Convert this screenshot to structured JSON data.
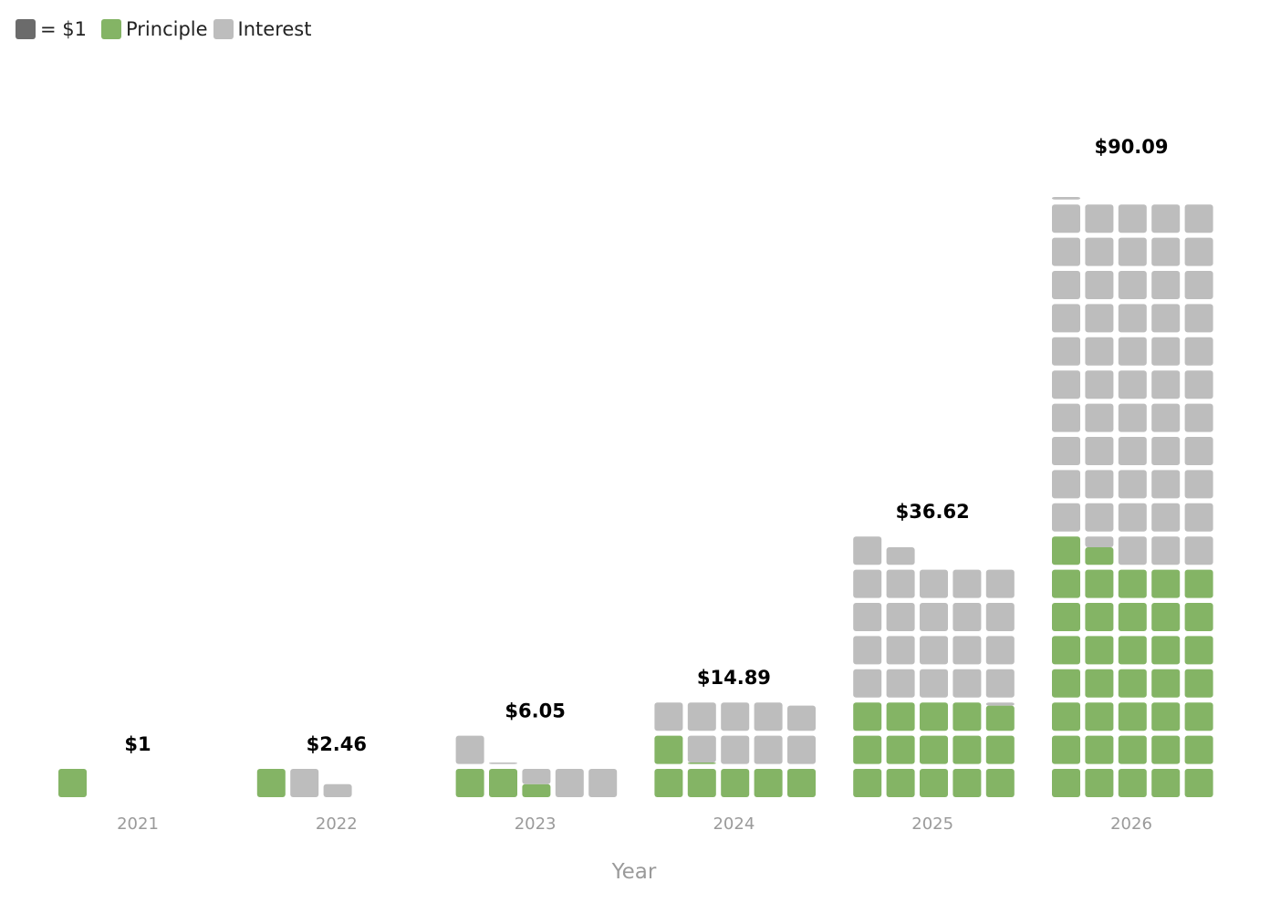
{
  "legend": {
    "unit_label": "= $1",
    "principle_label": "Principle",
    "interest_label": "Interest"
  },
  "colors": {
    "unit": "#6b6b6b",
    "principle": "#84b465",
    "interest": "#bdbdbd",
    "total_label": "#000000",
    "tick_label": "#9a9a9a"
  },
  "chart_data": {
    "type": "waffle",
    "unit_value": 1,
    "xlabel": "Year",
    "categories": [
      "2021",
      "2022",
      "2023",
      "2024",
      "2025",
      "2026"
    ],
    "total_labels": [
      "$1",
      "$2.46",
      "$6.05",
      "$14.89",
      "$36.62",
      "$90.09"
    ],
    "series": [
      {
        "name": "Principle",
        "values": [
          1,
          1,
          2.46,
          6.05,
          14.89,
          36.62
        ]
      },
      {
        "name": "Interest",
        "values": [
          0,
          1.46,
          3.59,
          8.84,
          21.73,
          53.47
        ]
      }
    ]
  }
}
